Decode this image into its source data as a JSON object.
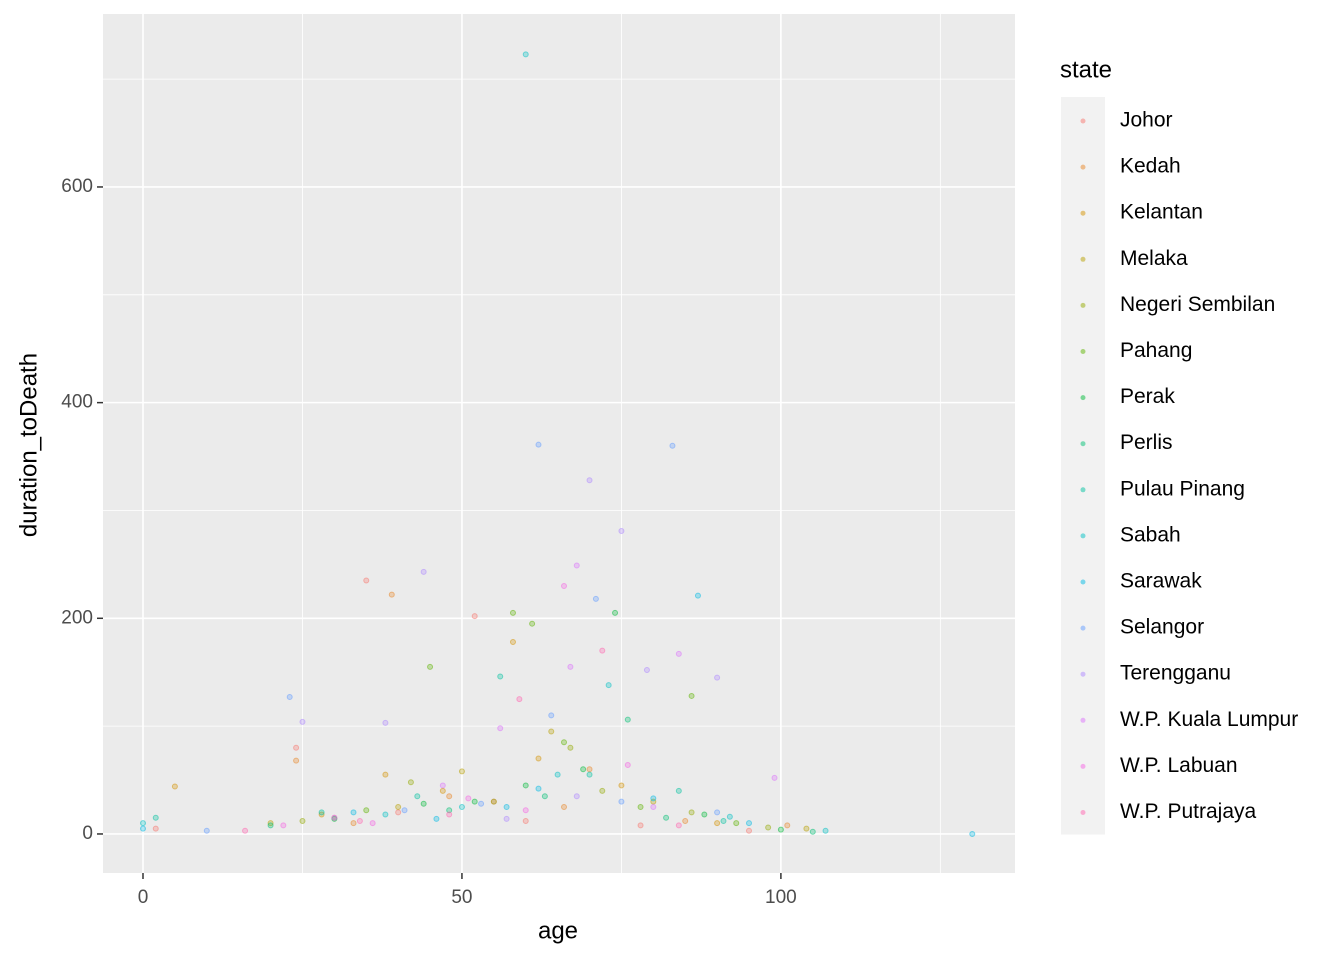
{
  "chart_data": {
    "type": "scatter",
    "xlabel": "age",
    "ylabel": "duration_toDeath",
    "legend_title": "state",
    "xlim": [
      -6.27,
      136.7
    ],
    "ylim": [
      -36.2,
      760.4
    ],
    "xticks": [
      0,
      50,
      100
    ],
    "yticks": [
      0,
      200,
      400,
      600
    ],
    "x_minor_grid": [
      25,
      75,
      125
    ],
    "y_minor_grid": [
      100,
      300,
      500,
      700
    ],
    "grid": true,
    "legend": "right",
    "point_alpha": 0.3,
    "series": [
      {
        "name": "Johor",
        "color": "#F8766D",
        "x": [
          35,
          52,
          24,
          40,
          60,
          78,
          30,
          55,
          2,
          95
        ],
        "values": [
          235,
          202,
          80,
          20,
          12,
          8,
          15,
          30,
          5,
          3
        ]
      },
      {
        "name": "Kedah",
        "color": "#E88526",
        "x": [
          39,
          24,
          48,
          66,
          70,
          33,
          85,
          101
        ],
        "values": [
          222,
          68,
          35,
          25,
          60,
          10,
          12,
          8
        ]
      },
      {
        "name": "Kelantan",
        "color": "#D39200",
        "x": [
          38,
          47,
          58,
          62,
          75,
          28,
          90,
          5
        ],
        "values": [
          55,
          40,
          178,
          70,
          45,
          18,
          10,
          44
        ]
      },
      {
        "name": "Melaka",
        "color": "#B79F00",
        "x": [
          50,
          64,
          40,
          80,
          20,
          104
        ],
        "values": [
          58,
          95,
          25,
          30,
          10,
          5
        ]
      },
      {
        "name": "Negeri Sembilan",
        "color": "#93AA00",
        "x": [
          42,
          55,
          67,
          72,
          86,
          25,
          98
        ],
        "values": [
          48,
          30,
          80,
          40,
          20,
          12,
          6
        ]
      },
      {
        "name": "Pahang",
        "color": "#5EB300",
        "x": [
          58,
          61,
          45,
          86,
          66,
          35,
          78,
          93
        ],
        "values": [
          205,
          195,
          155,
          128,
          85,
          22,
          25,
          10
        ]
      },
      {
        "name": "Perak",
        "color": "#00BA38",
        "x": [
          74,
          60,
          52,
          69,
          44,
          88,
          30,
          100
        ],
        "values": [
          205,
          45,
          30,
          60,
          28,
          18,
          14,
          4
        ]
      },
      {
        "name": "Perlis",
        "color": "#00BF74",
        "x": [
          76,
          48,
          63,
          82,
          20,
          105
        ],
        "values": [
          106,
          22,
          35,
          15,
          8,
          2
        ]
      },
      {
        "name": "Pulau Pinang",
        "color": "#00C19F",
        "x": [
          56,
          43,
          70,
          84,
          91,
          28,
          2
        ],
        "values": [
          146,
          35,
          55,
          40,
          12,
          20,
          15
        ]
      },
      {
        "name": "Sabah",
        "color": "#00BFC4",
        "x": [
          60,
          73,
          65,
          50,
          38,
          92,
          0,
          107
        ],
        "values": [
          723,
          138,
          55,
          25,
          18,
          16,
          10,
          3
        ]
      },
      {
        "name": "Sarawak",
        "color": "#00B9E3",
        "x": [
          87,
          130,
          57,
          62,
          80,
          33,
          46,
          95,
          0
        ],
        "values": [
          221,
          0,
          25,
          42,
          33,
          20,
          14,
          10,
          5
        ]
      },
      {
        "name": "Selangor",
        "color": "#619CFF",
        "x": [
          62,
          83,
          71,
          23,
          64,
          53,
          41,
          90,
          75,
          10
        ],
        "values": [
          361,
          360,
          218,
          127,
          110,
          28,
          22,
          20,
          30,
          3
        ]
      },
      {
        "name": "Terengganu",
        "color": "#AE87FF",
        "x": [
          70,
          75,
          44,
          25,
          90,
          79,
          38,
          57,
          68
        ],
        "values": [
          328,
          281,
          243,
          104,
          145,
          152,
          103,
          14,
          35
        ]
      },
      {
        "name": "W.P. Kuala Lumpur",
        "color": "#DB72FB",
        "x": [
          68,
          84,
          67,
          56,
          47,
          30,
          80,
          99
        ],
        "values": [
          249,
          167,
          155,
          98,
          45,
          15,
          25,
          52
        ]
      },
      {
        "name": "W.P. Labuan",
        "color": "#F564E3",
        "x": [
          66,
          76,
          51,
          60,
          36,
          22
        ],
        "values": [
          230,
          64,
          33,
          22,
          10,
          8
        ]
      },
      {
        "name": "W.P. Putrajaya",
        "color": "#FF64B0",
        "x": [
          72,
          59,
          34,
          48,
          84,
          16
        ],
        "values": [
          170,
          125,
          12,
          18,
          8,
          3
        ]
      }
    ]
  }
}
